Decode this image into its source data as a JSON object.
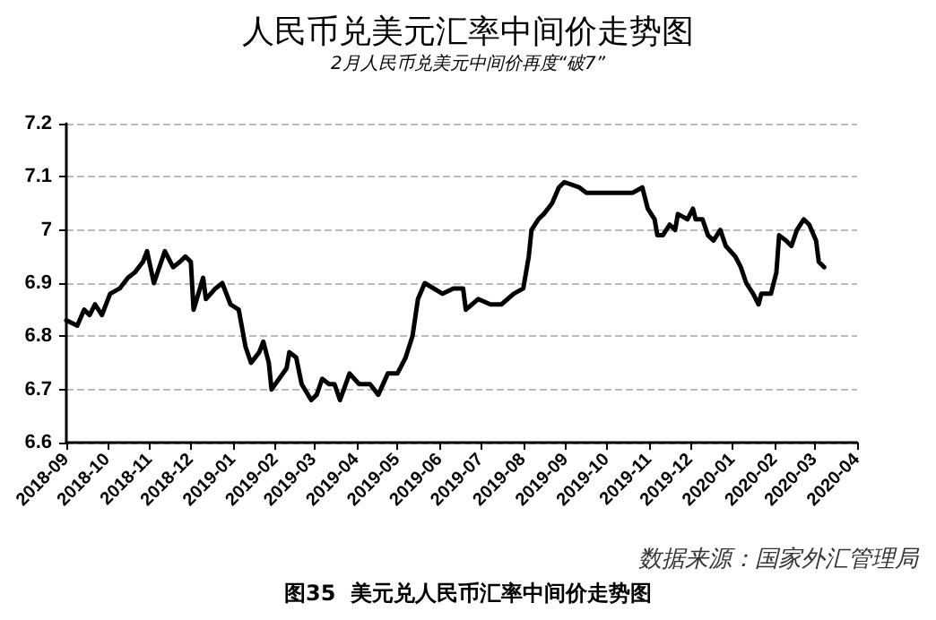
{
  "chart_data": {
    "type": "line",
    "title": "人民币兑美元汇率中间价走势图",
    "subtitle": "2月人民币兑美元中间价再度“破7”",
    "annotations": [
      "数据来源：国家外汇管理局",
      "图35  美元兑人民币汇率中间价走势图"
    ],
    "x": [
      "2018-09-01",
      "2018-09-09",
      "2018-09-14",
      "2018-09-18",
      "2018-09-22",
      "2018-09-27",
      "2018-10-03",
      "2018-10-10",
      "2018-10-16",
      "2018-10-21",
      "2018-10-27",
      "2018-10-30",
      "2018-11-04",
      "2018-11-12",
      "2018-11-18",
      "2018-11-23",
      "2018-11-27",
      "2018-12-01",
      "2018-12-03",
      "2018-12-10",
      "2018-12-12",
      "2018-12-19",
      "2018-12-24",
      "2018-12-30",
      "2019-01-05",
      "2019-01-10",
      "2019-01-14",
      "2019-01-20",
      "2019-01-23",
      "2019-01-27",
      "2019-01-29",
      "2019-02-09",
      "2019-02-11",
      "2019-02-16",
      "2019-02-20",
      "2019-02-27",
      "2019-03-03",
      "2019-03-07",
      "2019-03-12",
      "2019-03-16",
      "2019-03-20",
      "2019-03-27",
      "2019-04-03",
      "2019-04-11",
      "2019-04-17",
      "2019-04-24",
      "2019-05-01",
      "2019-05-07",
      "2019-05-12",
      "2019-05-16",
      "2019-05-21",
      "2019-06-03",
      "2019-06-11",
      "2019-06-18",
      "2019-06-20",
      "2019-06-29",
      "2019-07-08",
      "2019-07-16",
      "2019-07-25",
      "2019-08-01",
      "2019-08-05",
      "2019-08-07",
      "2019-08-12",
      "2019-08-16",
      "2019-08-22",
      "2019-08-27",
      "2019-08-31",
      "2019-09-11",
      "2019-09-16",
      "2019-09-20",
      "2019-10-16",
      "2019-10-20",
      "2019-10-27",
      "2019-10-31",
      "2019-11-05",
      "2019-11-07",
      "2019-11-11",
      "2019-11-16",
      "2019-11-20",
      "2019-11-22",
      "2019-11-29",
      "2019-12-03",
      "2019-12-05",
      "2019-12-10",
      "2019-12-14",
      "2019-12-18",
      "2019-12-23",
      "2019-12-27",
      "2020-01-03",
      "2020-01-07",
      "2020-01-11",
      "2020-01-16",
      "2020-01-20",
      "2020-01-22",
      "2020-01-29",
      "2020-02-02",
      "2020-02-04",
      "2020-02-09",
      "2020-02-13",
      "2020-02-17",
      "2020-02-22",
      "2020-02-26",
      "2020-03-02",
      "2020-03-04",
      "2020-03-08"
    ],
    "series": [
      {
        "color": "#000000",
        "values": [
          6.83,
          6.82,
          6.85,
          6.84,
          6.86,
          6.84,
          6.88,
          6.89,
          6.91,
          6.92,
          6.94,
          6.96,
          6.9,
          6.96,
          6.93,
          6.94,
          6.95,
          6.94,
          6.85,
          6.91,
          6.87,
          6.89,
          6.9,
          6.86,
          6.85,
          6.78,
          6.75,
          6.77,
          6.79,
          6.75,
          6.7,
          6.74,
          6.77,
          6.76,
          6.71,
          6.68,
          6.69,
          6.72,
          6.71,
          6.71,
          6.68,
          6.73,
          6.71,
          6.71,
          6.69,
          6.73,
          6.73,
          6.76,
          6.8,
          6.87,
          6.9,
          6.88,
          6.89,
          6.89,
          6.85,
          6.87,
          6.86,
          6.86,
          6.88,
          6.89,
          6.95,
          7,
          7.02,
          7.03,
          7.05,
          7.08,
          7.09,
          7.08,
          7.07,
          7.07,
          7.07,
          7.07,
          7.08,
          7.04,
          7.02,
          6.99,
          6.99,
          7.01,
          7,
          7.03,
          7.02,
          7.04,
          7.02,
          7.02,
          6.99,
          6.98,
          7,
          6.97,
          6.95,
          6.93,
          6.9,
          6.88,
          6.86,
          6.88,
          6.88,
          6.92,
          6.99,
          6.98,
          6.97,
          7,
          7.02,
          7.01,
          6.98,
          6.94,
          6.93
        ]
      }
    ],
    "xlim": [
      "2018-09-01",
      "2020-04-01"
    ],
    "xticks": [
      "2018-09",
      "2018-10",
      "2018-11",
      "2018-12",
      "2019-01",
      "2019-02",
      "2019-03",
      "2019-04",
      "2019-05",
      "2019-06",
      "2019-07",
      "2019-08",
      "2019-09",
      "2019-10",
      "2019-11",
      "2019-12",
      "2020-01",
      "2020-02",
      "2020-03",
      "2020-04"
    ],
    "ylim": [
      6.6,
      7.2
    ],
    "yticks": [
      6.6,
      6.7,
      6.8,
      6.9,
      7,
      7.1,
      7.2
    ],
    "grid": "y",
    "marker": "none",
    "line_style": "solid"
  }
}
